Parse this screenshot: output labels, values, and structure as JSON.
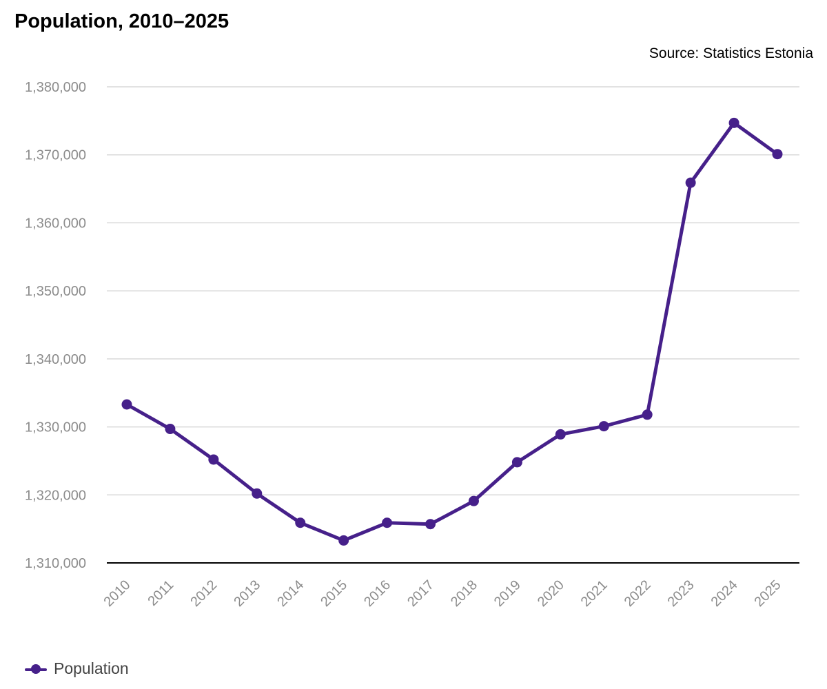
{
  "chart_data": {
    "type": "line",
    "title": "Population, 2010–2025",
    "source": "Source: Statistics Estonia",
    "categories": [
      "2010",
      "2011",
      "2012",
      "2013",
      "2014",
      "2015",
      "2016",
      "2017",
      "2018",
      "2019",
      "2020",
      "2021",
      "2022",
      "2023",
      "2024",
      "2025"
    ],
    "series": [
      {
        "name": "Population",
        "values": [
          1333300,
          1329700,
          1325200,
          1320200,
          1315900,
          1313300,
          1315900,
          1315700,
          1319100,
          1324800,
          1328900,
          1330100,
          1331800,
          1365900,
          1374700,
          1370100
        ]
      }
    ],
    "yticks": [
      "1,310,000",
      "1,320,000",
      "1,330,000",
      "1,340,000",
      "1,350,000",
      "1,360,000",
      "1,370,000",
      "1,380,000"
    ],
    "ylim": [
      1310000,
      1380000
    ],
    "grid": true,
    "legend_position": "bottom-left",
    "colors": {
      "series": "#46208a",
      "grid": "#d9d9d9",
      "axis": "#000000",
      "tick": "#8c8c8c"
    }
  }
}
